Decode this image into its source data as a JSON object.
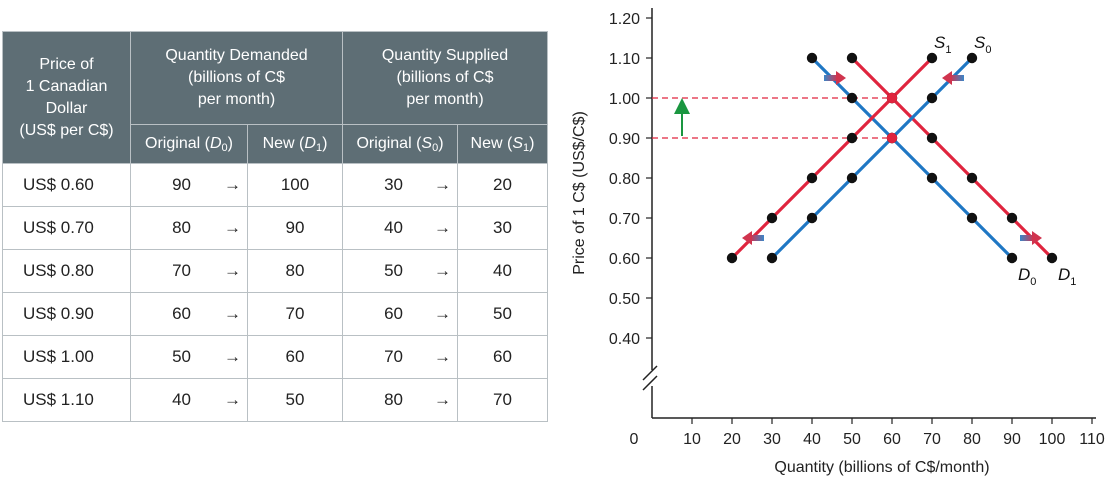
{
  "table": {
    "header": {
      "price_col": [
        "Price of",
        "1 Canadian",
        "Dollar",
        "(US$ per C$)"
      ],
      "demanded": [
        "Quantity Demanded",
        "(billions of C$",
        "per month)"
      ],
      "supplied": [
        "Quantity Supplied",
        "(billions of C$",
        "per month)"
      ],
      "sub_original_d": "Original (",
      "sub_original_d_sym": "D",
      "sub_original_d_idx": "0",
      "sub_new_d": "New (",
      "sub_new_d_sym": "D",
      "sub_new_d_idx": "1",
      "sub_original_s": "Original (",
      "sub_original_s_sym": "S",
      "sub_original_s_idx": "0",
      "sub_new_s": "New (",
      "sub_new_s_sym": "S",
      "sub_new_s_idx": "1",
      "close_paren": ")"
    },
    "arrow": "→",
    "rows": [
      {
        "price": "US$ 0.60",
        "d0": "90",
        "d1": "100",
        "s0": "30",
        "s1": "20"
      },
      {
        "price": "US$ 0.70",
        "d0": "80",
        "d1": "90",
        "s0": "40",
        "s1": "30"
      },
      {
        "price": "US$ 0.80",
        "d0": "70",
        "d1": "80",
        "s0": "50",
        "s1": "40"
      },
      {
        "price": "US$ 0.90",
        "d0": "60",
        "d1": "70",
        "s0": "60",
        "s1": "50"
      },
      {
        "price": "US$ 1.00",
        "d0": "50",
        "d1": "60",
        "s0": "70",
        "s1": "60"
      },
      {
        "price": "US$ 1.10",
        "d0": "40",
        "d1": "50",
        "s0": "80",
        "s1": "70"
      }
    ]
  },
  "chart_data": {
    "type": "line",
    "xlabel": "Quantity (billions of C$/month)",
    "ylabel": "Price of 1 C$ (US$/C$)",
    "xlim": [
      0,
      110
    ],
    "ylim": [
      0.4,
      1.2
    ],
    "x_ticks": [
      0,
      10,
      20,
      30,
      40,
      50,
      60,
      70,
      80,
      90,
      100,
      110
    ],
    "y_ticks": [
      "0.40",
      "0.50",
      "0.60",
      "0.70",
      "0.80",
      "0.90",
      "1.00",
      "1.10",
      "1.20"
    ],
    "y_axis_break": true,
    "grid": false,
    "series": [
      {
        "name": "D0",
        "label_sym": "D",
        "label_idx": "0",
        "color": "#1f77c4",
        "points": [
          [
            40,
            1.1
          ],
          [
            50,
            1.0
          ],
          [
            60,
            0.9
          ],
          [
            70,
            0.8
          ],
          [
            80,
            0.7
          ],
          [
            90,
            0.6
          ]
        ]
      },
      {
        "name": "D1",
        "label_sym": "D",
        "label_idx": "1",
        "color": "#e0243e",
        "points": [
          [
            50,
            1.1
          ],
          [
            60,
            1.0
          ],
          [
            70,
            0.9
          ],
          [
            80,
            0.8
          ],
          [
            90,
            0.7
          ],
          [
            100,
            0.6
          ]
        ]
      },
      {
        "name": "S0",
        "label_sym": "S",
        "label_idx": "0",
        "color": "#1f77c4",
        "points": [
          [
            30,
            0.6
          ],
          [
            40,
            0.7
          ],
          [
            50,
            0.8
          ],
          [
            60,
            0.9
          ],
          [
            70,
            1.0
          ],
          [
            80,
            1.1
          ]
        ]
      },
      {
        "name": "S1",
        "label_sym": "S",
        "label_idx": "1",
        "color": "#e0243e",
        "points": [
          [
            20,
            0.6
          ],
          [
            30,
            0.7
          ],
          [
            40,
            0.8
          ],
          [
            50,
            0.9
          ],
          [
            60,
            1.0
          ],
          [
            70,
            1.1
          ]
        ]
      }
    ],
    "equilibria": [
      {
        "x": 60,
        "y": 0.9,
        "color": "#e0243e"
      },
      {
        "x": 60,
        "y": 1.0,
        "color": "#e0243e"
      }
    ],
    "highlighted_ticks": [
      {
        "label": "1.00",
        "color": "#e0243e"
      },
      {
        "label": "0.90",
        "color": "#e0243e"
      }
    ],
    "price_rise_arrow": {
      "from": 0.905,
      "to": 0.995,
      "x": 7.5,
      "color": "#1a9640"
    },
    "shift_arrows": [
      {
        "x": 45.5,
        "y": 1.05,
        "dir": "right"
      },
      {
        "x": 94.5,
        "y": 0.65,
        "dir": "right"
      },
      {
        "x": 75.5,
        "y": 1.05,
        "dir": "left"
      },
      {
        "x": 25.5,
        "y": 0.65,
        "dir": "left"
      }
    ],
    "colors": {
      "demand_supply_original": "#1f77c4",
      "shifted": "#e0243e",
      "marker": "#111111"
    }
  }
}
